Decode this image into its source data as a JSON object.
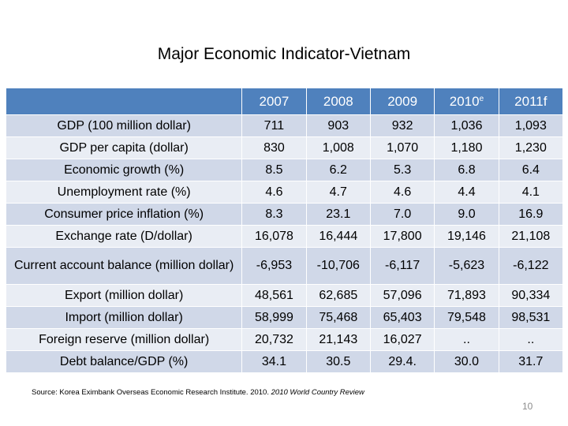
{
  "title": "Major Economic Indicator-Vietnam",
  "table": {
    "header": {
      "corner": "",
      "years": [
        {
          "label": "2007",
          "sup": ""
        },
        {
          "label": "2008",
          "sup": ""
        },
        {
          "label": "2009",
          "sup": ""
        },
        {
          "label": "2010",
          "sup": "e"
        },
        {
          "label": "2011f",
          "sup": ""
        }
      ]
    },
    "rows": [
      {
        "label": "GDP (100 million dollar)",
        "values": [
          "711",
          "903",
          "932",
          "1,036",
          "1,093"
        ]
      },
      {
        "label": "GDP per capita (dollar)",
        "values": [
          "830",
          "1,008",
          "1,070",
          "1,180",
          "1,230"
        ]
      },
      {
        "label": "Economic growth (%)",
        "values": [
          "8.5",
          "6.2",
          "5.3",
          "6.8",
          "6.4"
        ]
      },
      {
        "label": "Unemployment rate (%)",
        "values": [
          "4.6",
          "4.7",
          "4.6",
          "4.4",
          "4.1"
        ]
      },
      {
        "label": "Consumer price inflation (%)",
        "values": [
          "8.3",
          "23.1",
          "7.0",
          "9.0",
          "16.9"
        ]
      },
      {
        "label": "Exchange rate (D/dollar)",
        "values": [
          "16,078",
          "16,444",
          "17,800",
          "19,146",
          "21,108"
        ]
      },
      {
        "label": "Current account balance (million dollar)",
        "values": [
          "-6,953",
          "-10,706",
          "-6,117",
          "-5,623",
          "-6,122"
        ]
      },
      {
        "label": "Export (million dollar)",
        "values": [
          "48,561",
          "62,685",
          "57,096",
          "71,893",
          "90,334"
        ]
      },
      {
        "label": "Import (million dollar)",
        "values": [
          "58,999",
          "75,468",
          "65,403",
          "79,548",
          "98,531"
        ]
      },
      {
        "label": "Foreign reserve (million dollar)",
        "values": [
          "20,732",
          "21,143",
          "16,027",
          "..",
          ".."
        ]
      },
      {
        "label": "Debt balance/GDP (%)",
        "values": [
          "34.1",
          "30.5",
          "29.4.",
          "30.0",
          "31.7"
        ]
      }
    ]
  },
  "source": {
    "prefix": "Source: Korea Eximbank Overseas Economic Research Institute. 2010. ",
    "italic": "2010 World Country Review"
  },
  "page_number": "10"
}
